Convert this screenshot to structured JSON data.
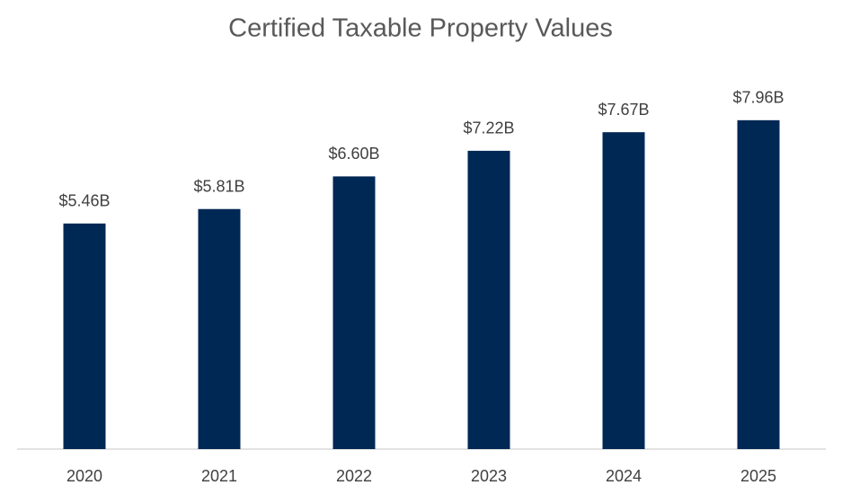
{
  "chart_data": {
    "type": "bar",
    "title": "Certified Taxable Property Values",
    "categories": [
      "2020",
      "2021",
      "2022",
      "2023",
      "2024",
      "2025"
    ],
    "values": [
      5.46,
      5.81,
      6.6,
      7.22,
      7.67,
      7.96
    ],
    "value_labels": [
      "$5.46B",
      "$5.81B",
      "$6.60B",
      "$7.22B",
      "$7.67B",
      "$7.96B"
    ],
    "color": "#002855",
    "ylim": [
      0,
      10
    ],
    "grid": false
  }
}
